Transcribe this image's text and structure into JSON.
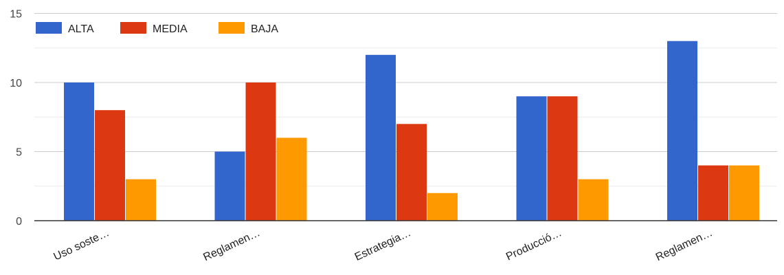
{
  "chart_data": {
    "type": "bar",
    "categories": [
      "Uso soste…",
      "Reglamen…",
      "Estrategia…",
      "Producció…",
      "Reglamen…"
    ],
    "series": [
      {
        "name": "ALTA",
        "color": "#3366cc",
        "values": [
          10,
          5,
          12,
          9,
          13
        ]
      },
      {
        "name": "MEDIA",
        "color": "#dc3912",
        "values": [
          8,
          10,
          7,
          9,
          4
        ]
      },
      {
        "name": "BAJA",
        "color": "#ff9900",
        "values": [
          3,
          6,
          2,
          3,
          4
        ]
      }
    ],
    "yticks": [
      0,
      5,
      10,
      15
    ],
    "ylim": [
      0,
      15
    ],
    "grid": true,
    "legend_position": "top-left"
  }
}
